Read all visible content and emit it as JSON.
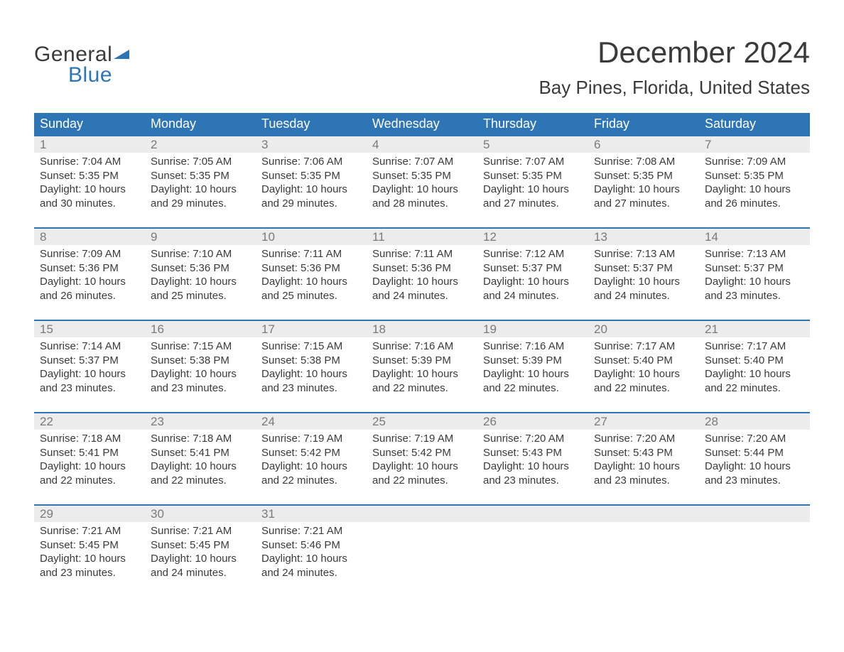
{
  "logo": {
    "text1": "General",
    "text2": "Blue",
    "accent_color": "#2e75b6"
  },
  "title": "December 2024",
  "subtitle": "Bay Pines, Florida, United States",
  "colors": {
    "header_bg": "#2e75b6",
    "header_text": "#ffffff",
    "daynum_bg": "#ececec",
    "daynum_text": "#7a7a7a",
    "row_border": "#2e75b6",
    "body_text": "#3a3a3a",
    "page_bg": "#ffffff"
  },
  "fonts": {
    "title_size_pt": 32,
    "subtitle_size_pt": 20,
    "header_size_pt": 14,
    "body_size_pt": 11
  },
  "day_headers": [
    "Sunday",
    "Monday",
    "Tuesday",
    "Wednesday",
    "Thursday",
    "Friday",
    "Saturday"
  ],
  "grid": {
    "rows": 5,
    "cols": 7,
    "first_day_col": 0
  },
  "days": [
    {
      "n": "1",
      "sunrise": "Sunrise: 7:04 AM",
      "sunset": "Sunset: 5:35 PM",
      "dl1": "Daylight: 10 hours",
      "dl2": "and 30 minutes."
    },
    {
      "n": "2",
      "sunrise": "Sunrise: 7:05 AM",
      "sunset": "Sunset: 5:35 PM",
      "dl1": "Daylight: 10 hours",
      "dl2": "and 29 minutes."
    },
    {
      "n": "3",
      "sunrise": "Sunrise: 7:06 AM",
      "sunset": "Sunset: 5:35 PM",
      "dl1": "Daylight: 10 hours",
      "dl2": "and 29 minutes."
    },
    {
      "n": "4",
      "sunrise": "Sunrise: 7:07 AM",
      "sunset": "Sunset: 5:35 PM",
      "dl1": "Daylight: 10 hours",
      "dl2": "and 28 minutes."
    },
    {
      "n": "5",
      "sunrise": "Sunrise: 7:07 AM",
      "sunset": "Sunset: 5:35 PM",
      "dl1": "Daylight: 10 hours",
      "dl2": "and 27 minutes."
    },
    {
      "n": "6",
      "sunrise": "Sunrise: 7:08 AM",
      "sunset": "Sunset: 5:35 PM",
      "dl1": "Daylight: 10 hours",
      "dl2": "and 27 minutes."
    },
    {
      "n": "7",
      "sunrise": "Sunrise: 7:09 AM",
      "sunset": "Sunset: 5:35 PM",
      "dl1": "Daylight: 10 hours",
      "dl2": "and 26 minutes."
    },
    {
      "n": "8",
      "sunrise": "Sunrise: 7:09 AM",
      "sunset": "Sunset: 5:36 PM",
      "dl1": "Daylight: 10 hours",
      "dl2": "and 26 minutes."
    },
    {
      "n": "9",
      "sunrise": "Sunrise: 7:10 AM",
      "sunset": "Sunset: 5:36 PM",
      "dl1": "Daylight: 10 hours",
      "dl2": "and 25 minutes."
    },
    {
      "n": "10",
      "sunrise": "Sunrise: 7:11 AM",
      "sunset": "Sunset: 5:36 PM",
      "dl1": "Daylight: 10 hours",
      "dl2": "and 25 minutes."
    },
    {
      "n": "11",
      "sunrise": "Sunrise: 7:11 AM",
      "sunset": "Sunset: 5:36 PM",
      "dl1": "Daylight: 10 hours",
      "dl2": "and 24 minutes."
    },
    {
      "n": "12",
      "sunrise": "Sunrise: 7:12 AM",
      "sunset": "Sunset: 5:37 PM",
      "dl1": "Daylight: 10 hours",
      "dl2": "and 24 minutes."
    },
    {
      "n": "13",
      "sunrise": "Sunrise: 7:13 AM",
      "sunset": "Sunset: 5:37 PM",
      "dl1": "Daylight: 10 hours",
      "dl2": "and 24 minutes."
    },
    {
      "n": "14",
      "sunrise": "Sunrise: 7:13 AM",
      "sunset": "Sunset: 5:37 PM",
      "dl1": "Daylight: 10 hours",
      "dl2": "and 23 minutes."
    },
    {
      "n": "15",
      "sunrise": "Sunrise: 7:14 AM",
      "sunset": "Sunset: 5:37 PM",
      "dl1": "Daylight: 10 hours",
      "dl2": "and 23 minutes."
    },
    {
      "n": "16",
      "sunrise": "Sunrise: 7:15 AM",
      "sunset": "Sunset: 5:38 PM",
      "dl1": "Daylight: 10 hours",
      "dl2": "and 23 minutes."
    },
    {
      "n": "17",
      "sunrise": "Sunrise: 7:15 AM",
      "sunset": "Sunset: 5:38 PM",
      "dl1": "Daylight: 10 hours",
      "dl2": "and 23 minutes."
    },
    {
      "n": "18",
      "sunrise": "Sunrise: 7:16 AM",
      "sunset": "Sunset: 5:39 PM",
      "dl1": "Daylight: 10 hours",
      "dl2": "and 22 minutes."
    },
    {
      "n": "19",
      "sunrise": "Sunrise: 7:16 AM",
      "sunset": "Sunset: 5:39 PM",
      "dl1": "Daylight: 10 hours",
      "dl2": "and 22 minutes."
    },
    {
      "n": "20",
      "sunrise": "Sunrise: 7:17 AM",
      "sunset": "Sunset: 5:40 PM",
      "dl1": "Daylight: 10 hours",
      "dl2": "and 22 minutes."
    },
    {
      "n": "21",
      "sunrise": "Sunrise: 7:17 AM",
      "sunset": "Sunset: 5:40 PM",
      "dl1": "Daylight: 10 hours",
      "dl2": "and 22 minutes."
    },
    {
      "n": "22",
      "sunrise": "Sunrise: 7:18 AM",
      "sunset": "Sunset: 5:41 PM",
      "dl1": "Daylight: 10 hours",
      "dl2": "and 22 minutes."
    },
    {
      "n": "23",
      "sunrise": "Sunrise: 7:18 AM",
      "sunset": "Sunset: 5:41 PM",
      "dl1": "Daylight: 10 hours",
      "dl2": "and 22 minutes."
    },
    {
      "n": "24",
      "sunrise": "Sunrise: 7:19 AM",
      "sunset": "Sunset: 5:42 PM",
      "dl1": "Daylight: 10 hours",
      "dl2": "and 22 minutes."
    },
    {
      "n": "25",
      "sunrise": "Sunrise: 7:19 AM",
      "sunset": "Sunset: 5:42 PM",
      "dl1": "Daylight: 10 hours",
      "dl2": "and 22 minutes."
    },
    {
      "n": "26",
      "sunrise": "Sunrise: 7:20 AM",
      "sunset": "Sunset: 5:43 PM",
      "dl1": "Daylight: 10 hours",
      "dl2": "and 23 minutes."
    },
    {
      "n": "27",
      "sunrise": "Sunrise: 7:20 AM",
      "sunset": "Sunset: 5:43 PM",
      "dl1": "Daylight: 10 hours",
      "dl2": "and 23 minutes."
    },
    {
      "n": "28",
      "sunrise": "Sunrise: 7:20 AM",
      "sunset": "Sunset: 5:44 PM",
      "dl1": "Daylight: 10 hours",
      "dl2": "and 23 minutes."
    },
    {
      "n": "29",
      "sunrise": "Sunrise: 7:21 AM",
      "sunset": "Sunset: 5:45 PM",
      "dl1": "Daylight: 10 hours",
      "dl2": "and 23 minutes."
    },
    {
      "n": "30",
      "sunrise": "Sunrise: 7:21 AM",
      "sunset": "Sunset: 5:45 PM",
      "dl1": "Daylight: 10 hours",
      "dl2": "and 24 minutes."
    },
    {
      "n": "31",
      "sunrise": "Sunrise: 7:21 AM",
      "sunset": "Sunset: 5:46 PM",
      "dl1": "Daylight: 10 hours",
      "dl2": "and 24 minutes."
    }
  ]
}
